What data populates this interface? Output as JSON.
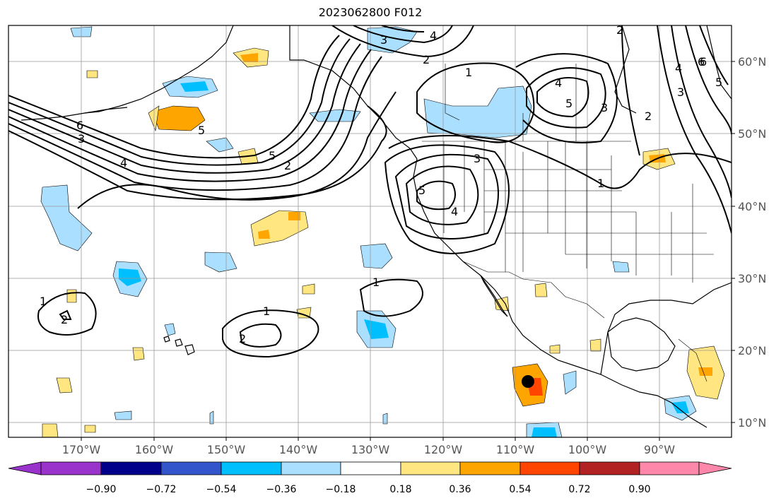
{
  "title": "2023062800 F012",
  "lon_labels": [
    "170°W",
    "160°W",
    "150°W",
    "140°W",
    "130°W",
    "120°W",
    "110°W",
    "100°W",
    "90°W"
  ],
  "lat_labels": [
    "60°N",
    "50°N",
    "40°N",
    "30°N",
    "20°N",
    "10°N"
  ],
  "colorbar": {
    "labels": [
      "−0.90",
      "−0.72",
      "−0.54",
      "−0.36",
      "−0.18",
      "0.18",
      "0.36",
      "0.54",
      "0.72",
      "0.90"
    ],
    "colors": [
      "#9933cc",
      "#00008b",
      "#3355cc",
      "#00bfff",
      "#aadfff",
      "#ffffff",
      "#ffe680",
      "#ffa500",
      "#ff4500",
      "#b22222",
      "#ff88aa"
    ]
  },
  "contour_labels": [
    "1",
    "2",
    "3",
    "4",
    "5",
    "6",
    "2",
    "3",
    "4",
    "5",
    "6",
    "1",
    "1",
    "1",
    "2",
    "2",
    "2",
    "3",
    "4",
    "5",
    "4",
    "3",
    "5",
    "1",
    "2",
    "3",
    "4",
    "5",
    "6"
  ],
  "fills": {
    "light_blue": "#aadfff",
    "mid_blue": "#00bfff",
    "light_yellow": "#ffe680",
    "orange": "#ffa500",
    "red_orange": "#ff4500"
  }
}
